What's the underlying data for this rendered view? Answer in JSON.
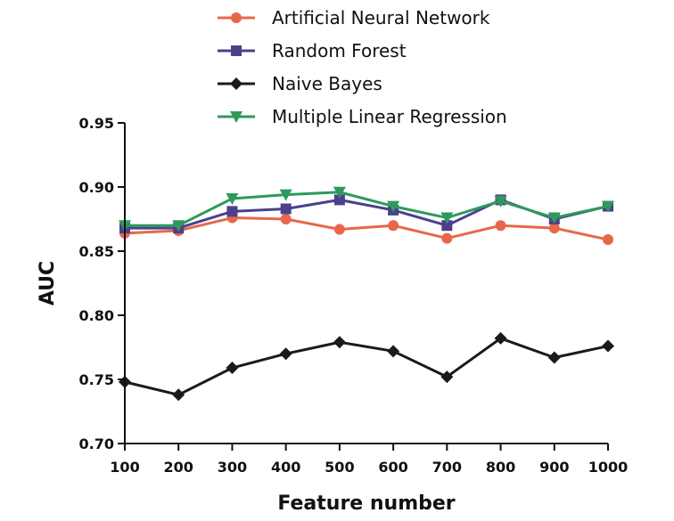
{
  "chart_data": {
    "type": "line",
    "xlabel": "Feature number",
    "ylabel": "AUC",
    "x": [
      100,
      200,
      300,
      400,
      500,
      600,
      700,
      800,
      900,
      1000
    ],
    "xticks": [
      "100",
      "200",
      "300",
      "400",
      "500",
      "600",
      "700",
      "800",
      "900",
      "1000"
    ],
    "yticks": [
      "0.70",
      "0.75",
      "0.80",
      "0.85",
      "0.90",
      "0.95"
    ],
    "ylim": [
      0.7,
      0.95
    ],
    "grid": false,
    "legend_position": "top",
    "series": [
      {
        "name": "Artificial Neural Network",
        "marker": "circle",
        "color": "#E8674A",
        "values": [
          0.864,
          0.866,
          0.876,
          0.875,
          0.867,
          0.87,
          0.86,
          0.87,
          0.868,
          0.859
        ]
      },
      {
        "name": "Random Forest",
        "marker": "square",
        "color": "#4B3F8E",
        "values": [
          0.868,
          0.868,
          0.881,
          0.883,
          0.89,
          0.882,
          0.87,
          0.89,
          0.875,
          0.885
        ]
      },
      {
        "name": "Naive Bayes",
        "marker": "diamond",
        "color": "#1a1a1a",
        "values": [
          0.748,
          0.738,
          0.759,
          0.77,
          0.779,
          0.772,
          0.752,
          0.782,
          0.767,
          0.776
        ]
      },
      {
        "name": "Multiple Linear Regression",
        "marker": "triangle-down",
        "color": "#2E9A5A",
        "values": [
          0.87,
          0.87,
          0.891,
          0.894,
          0.896,
          0.885,
          0.876,
          0.889,
          0.876,
          0.885
        ]
      }
    ]
  }
}
